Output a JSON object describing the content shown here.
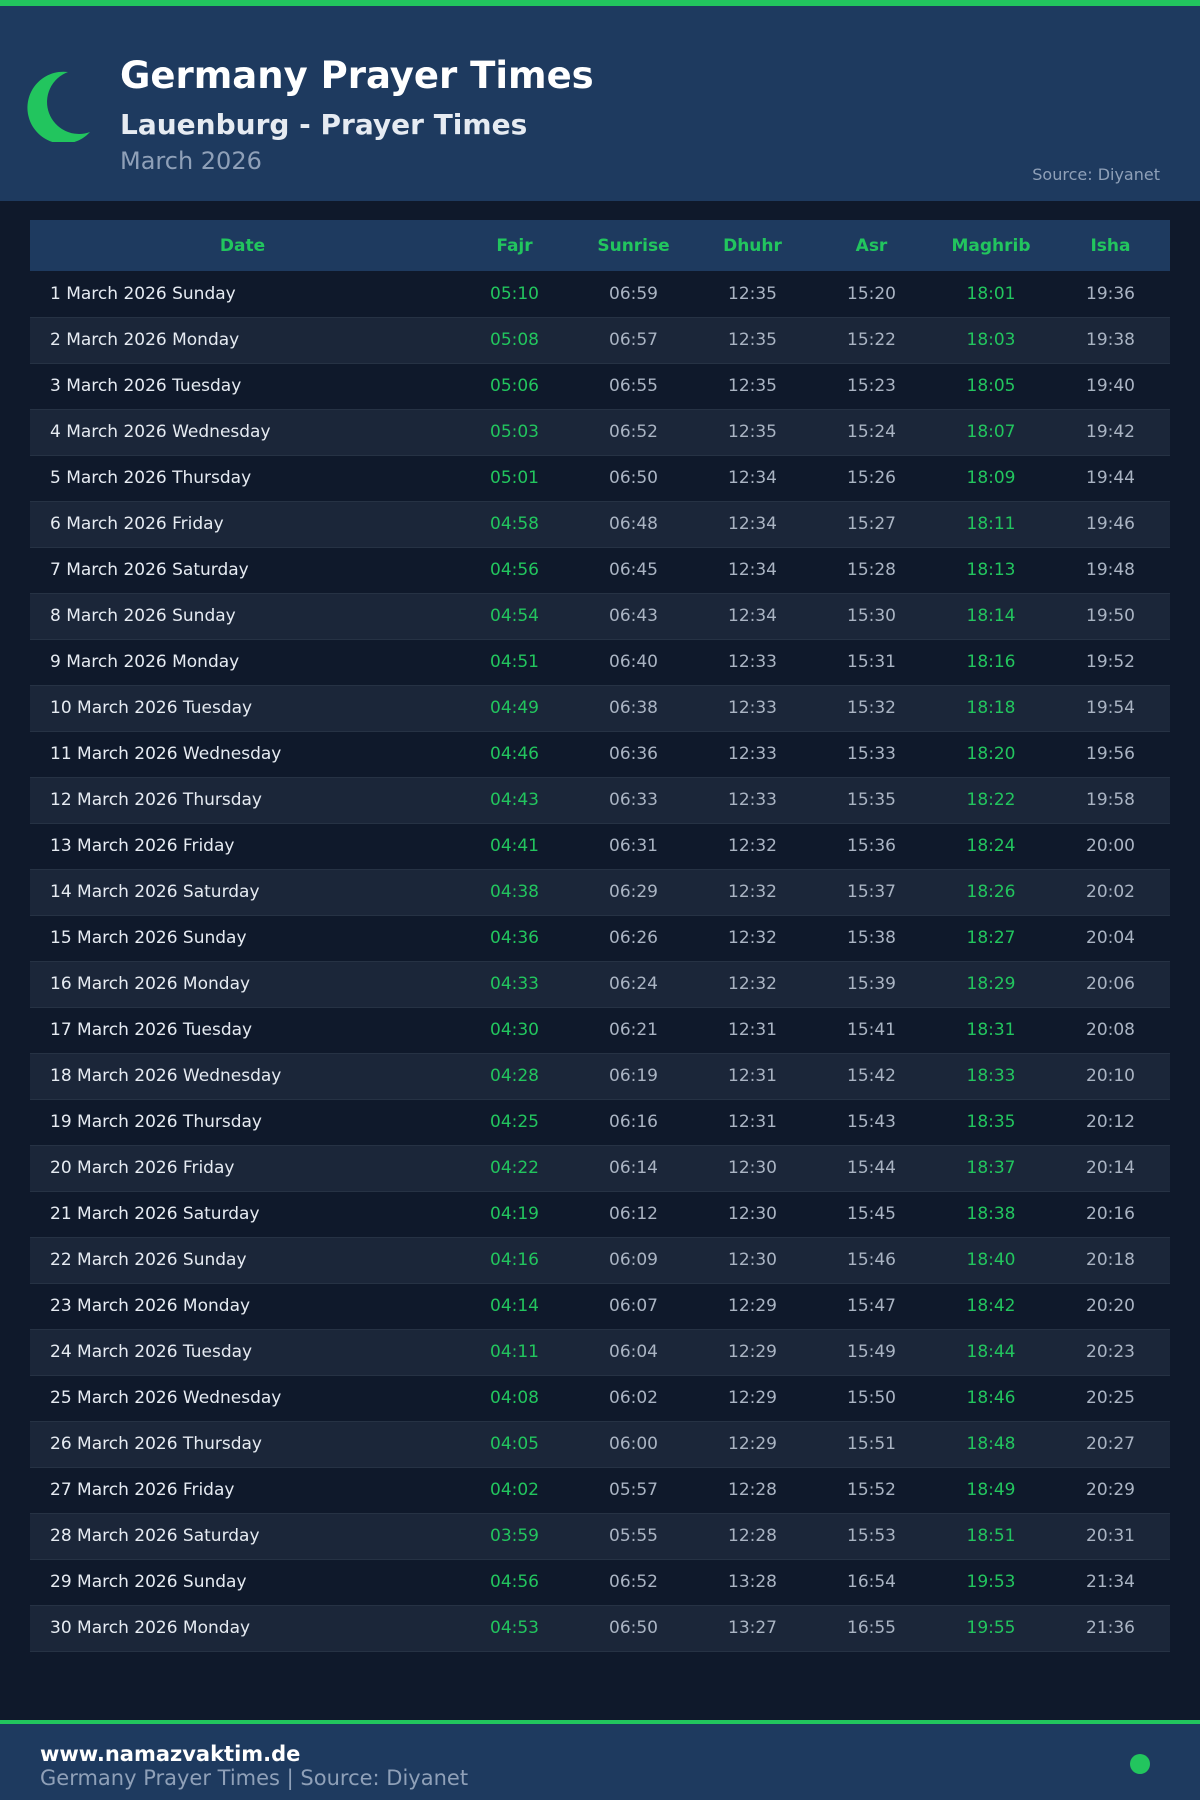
{
  "header": {
    "title": "Germany Prayer Times",
    "subtitle": "Lauenburg - Prayer Times",
    "month": "March 2026",
    "source": "Source: Diyanet"
  },
  "table": {
    "columns": [
      "Date",
      "Fajr",
      "Sunrise",
      "Dhuhr",
      "Asr",
      "Maghrib",
      "Isha"
    ],
    "rows": [
      [
        "1 March 2026 Sunday",
        "05:10",
        "06:59",
        "12:35",
        "15:20",
        "18:01",
        "19:36"
      ],
      [
        "2 March 2026 Monday",
        "05:08",
        "06:57",
        "12:35",
        "15:22",
        "18:03",
        "19:38"
      ],
      [
        "3 March 2026 Tuesday",
        "05:06",
        "06:55",
        "12:35",
        "15:23",
        "18:05",
        "19:40"
      ],
      [
        "4 March 2026 Wednesday",
        "05:03",
        "06:52",
        "12:35",
        "15:24",
        "18:07",
        "19:42"
      ],
      [
        "5 March 2026 Thursday",
        "05:01",
        "06:50",
        "12:34",
        "15:26",
        "18:09",
        "19:44"
      ],
      [
        "6 March 2026 Friday",
        "04:58",
        "06:48",
        "12:34",
        "15:27",
        "18:11",
        "19:46"
      ],
      [
        "7 March 2026 Saturday",
        "04:56",
        "06:45",
        "12:34",
        "15:28",
        "18:13",
        "19:48"
      ],
      [
        "8 March 2026 Sunday",
        "04:54",
        "06:43",
        "12:34",
        "15:30",
        "18:14",
        "19:50"
      ],
      [
        "9 March 2026 Monday",
        "04:51",
        "06:40",
        "12:33",
        "15:31",
        "18:16",
        "19:52"
      ],
      [
        "10 March 2026 Tuesday",
        "04:49",
        "06:38",
        "12:33",
        "15:32",
        "18:18",
        "19:54"
      ],
      [
        "11 March 2026 Wednesday",
        "04:46",
        "06:36",
        "12:33",
        "15:33",
        "18:20",
        "19:56"
      ],
      [
        "12 March 2026 Thursday",
        "04:43",
        "06:33",
        "12:33",
        "15:35",
        "18:22",
        "19:58"
      ],
      [
        "13 March 2026 Friday",
        "04:41",
        "06:31",
        "12:32",
        "15:36",
        "18:24",
        "20:00"
      ],
      [
        "14 March 2026 Saturday",
        "04:38",
        "06:29",
        "12:32",
        "15:37",
        "18:26",
        "20:02"
      ],
      [
        "15 March 2026 Sunday",
        "04:36",
        "06:26",
        "12:32",
        "15:38",
        "18:27",
        "20:04"
      ],
      [
        "16 March 2026 Monday",
        "04:33",
        "06:24",
        "12:32",
        "15:39",
        "18:29",
        "20:06"
      ],
      [
        "17 March 2026 Tuesday",
        "04:30",
        "06:21",
        "12:31",
        "15:41",
        "18:31",
        "20:08"
      ],
      [
        "18 March 2026 Wednesday",
        "04:28",
        "06:19",
        "12:31",
        "15:42",
        "18:33",
        "20:10"
      ],
      [
        "19 March 2026 Thursday",
        "04:25",
        "06:16",
        "12:31",
        "15:43",
        "18:35",
        "20:12"
      ],
      [
        "20 March 2026 Friday",
        "04:22",
        "06:14",
        "12:30",
        "15:44",
        "18:37",
        "20:14"
      ],
      [
        "21 March 2026 Saturday",
        "04:19",
        "06:12",
        "12:30",
        "15:45",
        "18:38",
        "20:16"
      ],
      [
        "22 March 2026 Sunday",
        "04:16",
        "06:09",
        "12:30",
        "15:46",
        "18:40",
        "20:18"
      ],
      [
        "23 March 2026 Monday",
        "04:14",
        "06:07",
        "12:29",
        "15:47",
        "18:42",
        "20:20"
      ],
      [
        "24 March 2026 Tuesday",
        "04:11",
        "06:04",
        "12:29",
        "15:49",
        "18:44",
        "20:23"
      ],
      [
        "25 March 2026 Wednesday",
        "04:08",
        "06:02",
        "12:29",
        "15:50",
        "18:46",
        "20:25"
      ],
      [
        "26 March 2026 Thursday",
        "04:05",
        "06:00",
        "12:29",
        "15:51",
        "18:48",
        "20:27"
      ],
      [
        "27 March 2026 Friday",
        "04:02",
        "05:57",
        "12:28",
        "15:52",
        "18:49",
        "20:29"
      ],
      [
        "28 March 2026 Saturday",
        "03:59",
        "05:55",
        "12:28",
        "15:53",
        "18:51",
        "20:31"
      ],
      [
        "29 March 2026 Sunday",
        "04:56",
        "06:52",
        "13:28",
        "16:54",
        "19:53",
        "21:34"
      ],
      [
        "30 March 2026 Monday",
        "04:53",
        "06:50",
        "13:27",
        "16:55",
        "19:55",
        "21:36"
      ]
    ]
  },
  "footer": {
    "site": "www.namazvaktim.de",
    "text": "Germany Prayer Times | Source: Diyanet"
  },
  "colors": {
    "accent": "#22c55e",
    "header_bg": "#1e3a5f",
    "page_bg": "#0f192b"
  },
  "icons": {
    "logo": "crescent-moon-icon"
  }
}
